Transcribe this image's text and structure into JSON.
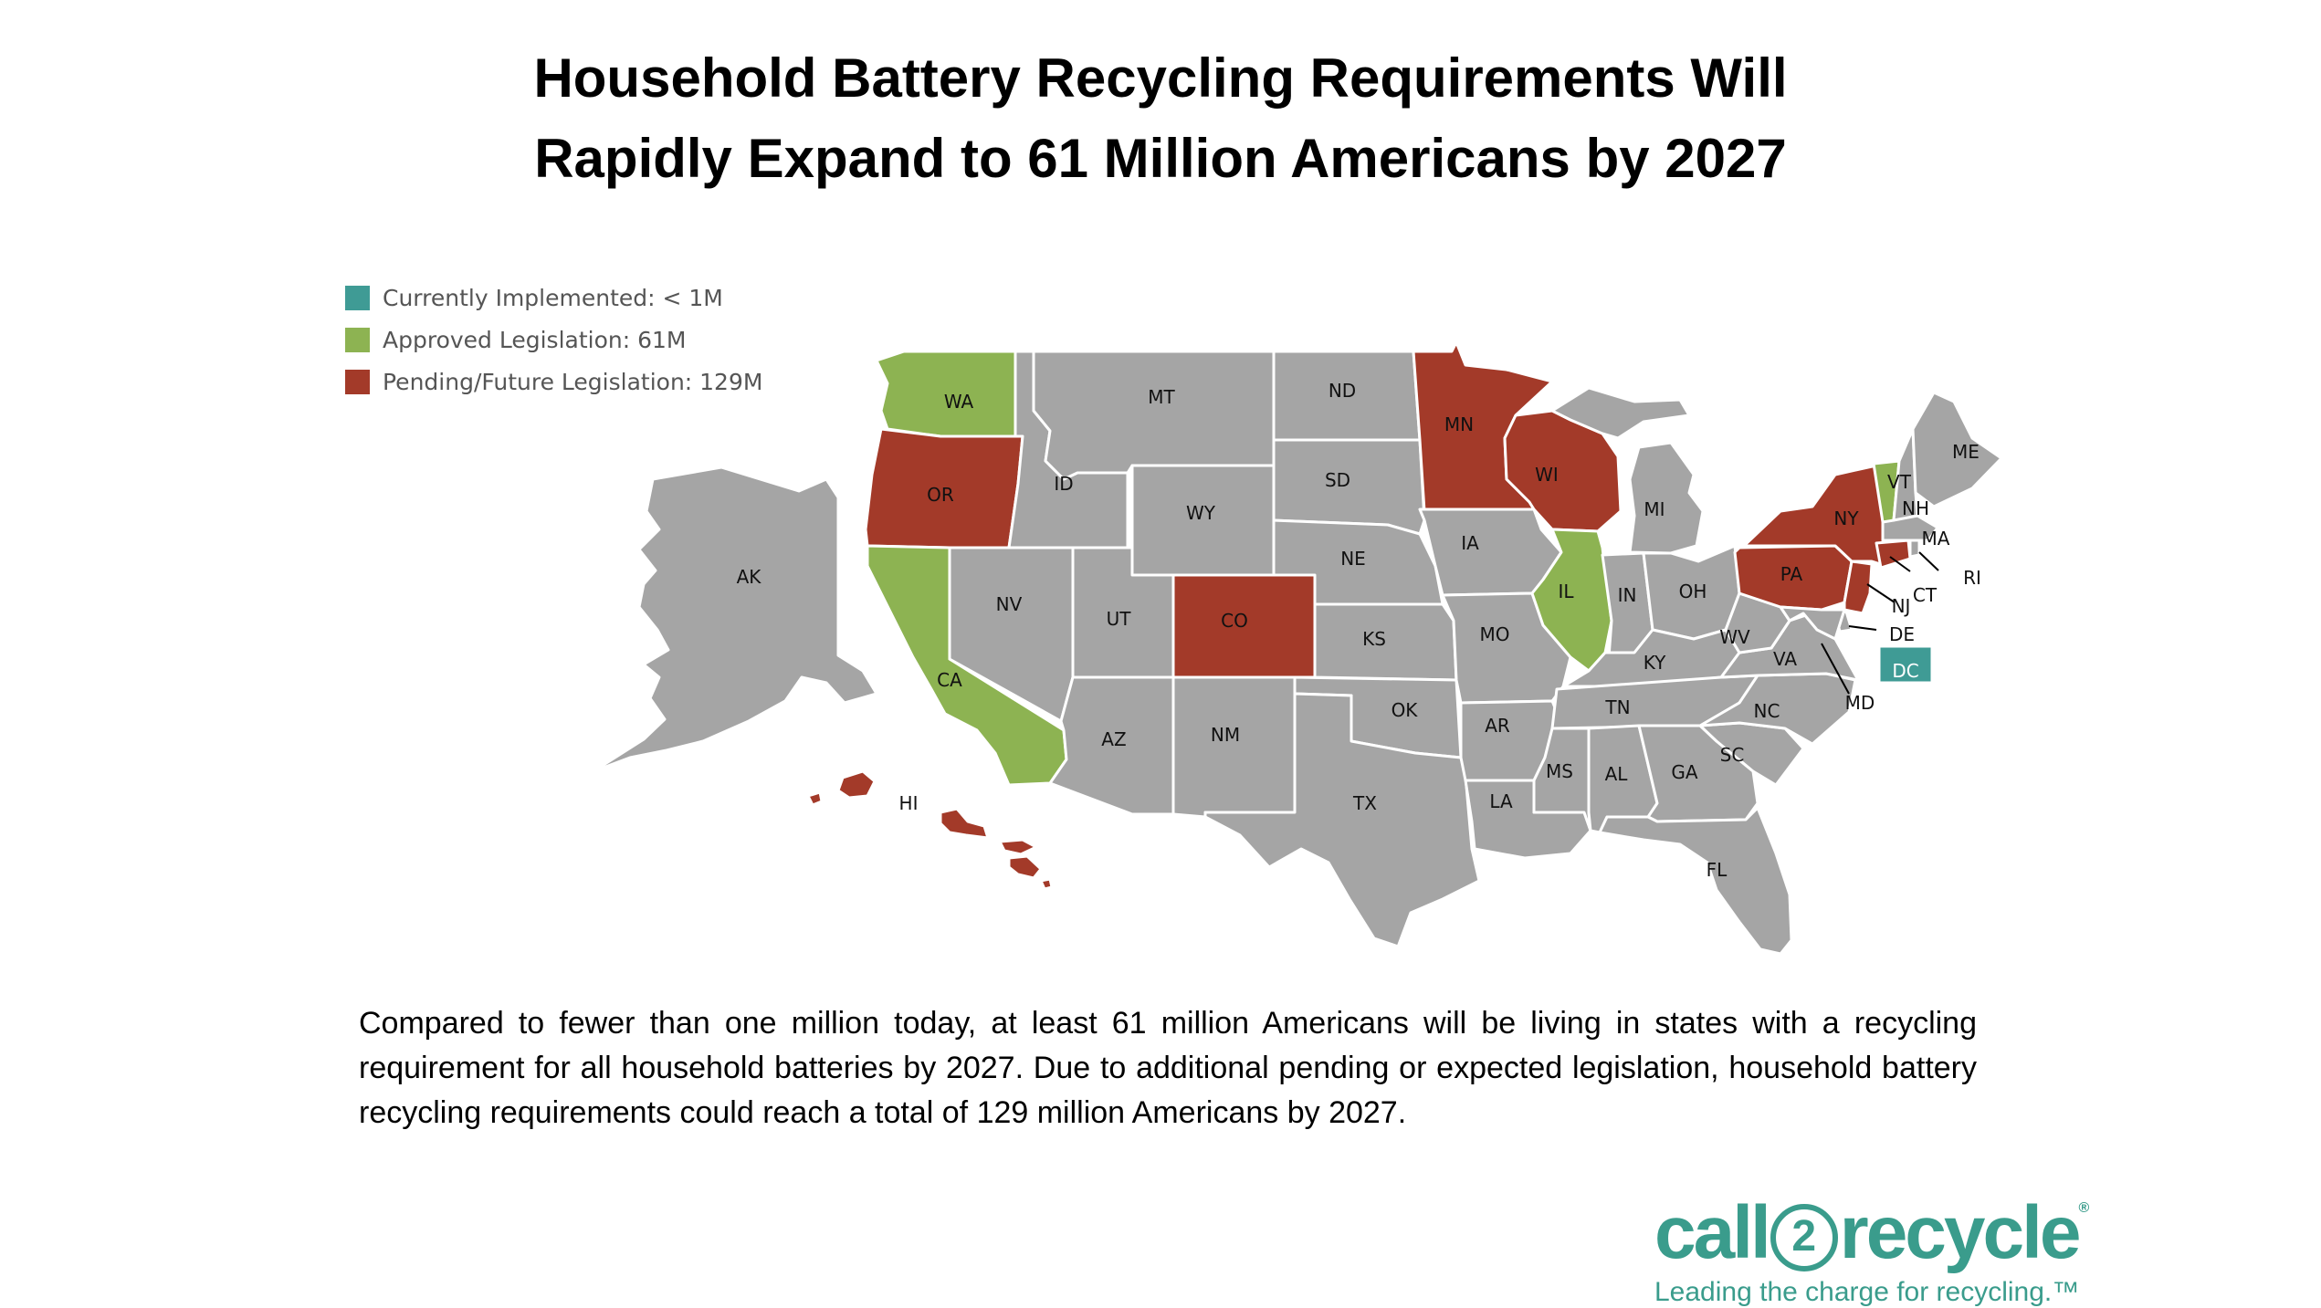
{
  "title": {
    "line1": "Household Battery Recycling Requirements Will",
    "line2": "Rapidly Expand to 61 Million Americans by 2027"
  },
  "legend": [
    {
      "label": "Currently Implemented: < 1M",
      "color": "#3f9b95"
    },
    {
      "label": "Approved Legislation: 61M",
      "color": "#8db352"
    },
    {
      "label": "Pending/Future Legislation: 129M",
      "color": "#a33a29"
    }
  ],
  "colors": {
    "default": "#a5a5a5",
    "implemented": "#3f9b95",
    "approved": "#8db352",
    "pending": "#a33a29"
  },
  "states": {
    "WA": "approved",
    "OR": "pending",
    "CA": "approved",
    "IL": "approved",
    "VT": "approved",
    "MN": "pending",
    "WI": "pending",
    "CO": "pending",
    "NY": "pending",
    "PA": "pending",
    "NJ": "pending",
    "CT": "pending",
    "HI": "pending",
    "DC": "implemented"
  },
  "labels": [
    "WA",
    "OR",
    "CA",
    "ID",
    "MT",
    "WY",
    "NV",
    "UT",
    "AZ",
    "CO",
    "NM",
    "ND",
    "SD",
    "NE",
    "KS",
    "OK",
    "TX",
    "MN",
    "IA",
    "MO",
    "AR",
    "LA",
    "WI",
    "IL",
    "MI",
    "IN",
    "OH",
    "KY",
    "TN",
    "MS",
    "AL",
    "GA",
    "FL",
    "SC",
    "NC",
    "VA",
    "WV",
    "PA",
    "NY",
    "VT",
    "NH",
    "ME",
    "MA",
    "RI",
    "CT",
    "NJ",
    "DE",
    "MD",
    "DC",
    "AK",
    "HI"
  ],
  "caption": "Compared to fewer than one million today, at least 61 million Americans will be living in states with a recycling requirement for all household batteries by 2027. Due to additional pending or expected legislation, household battery recycling requirements could reach a total of 129 million Americans by 2027.",
  "logo": {
    "pre": "call",
    "num": "2",
    "post": "recycle",
    "mark": "®",
    "tagline": "Leading the charge for recycling.™"
  }
}
